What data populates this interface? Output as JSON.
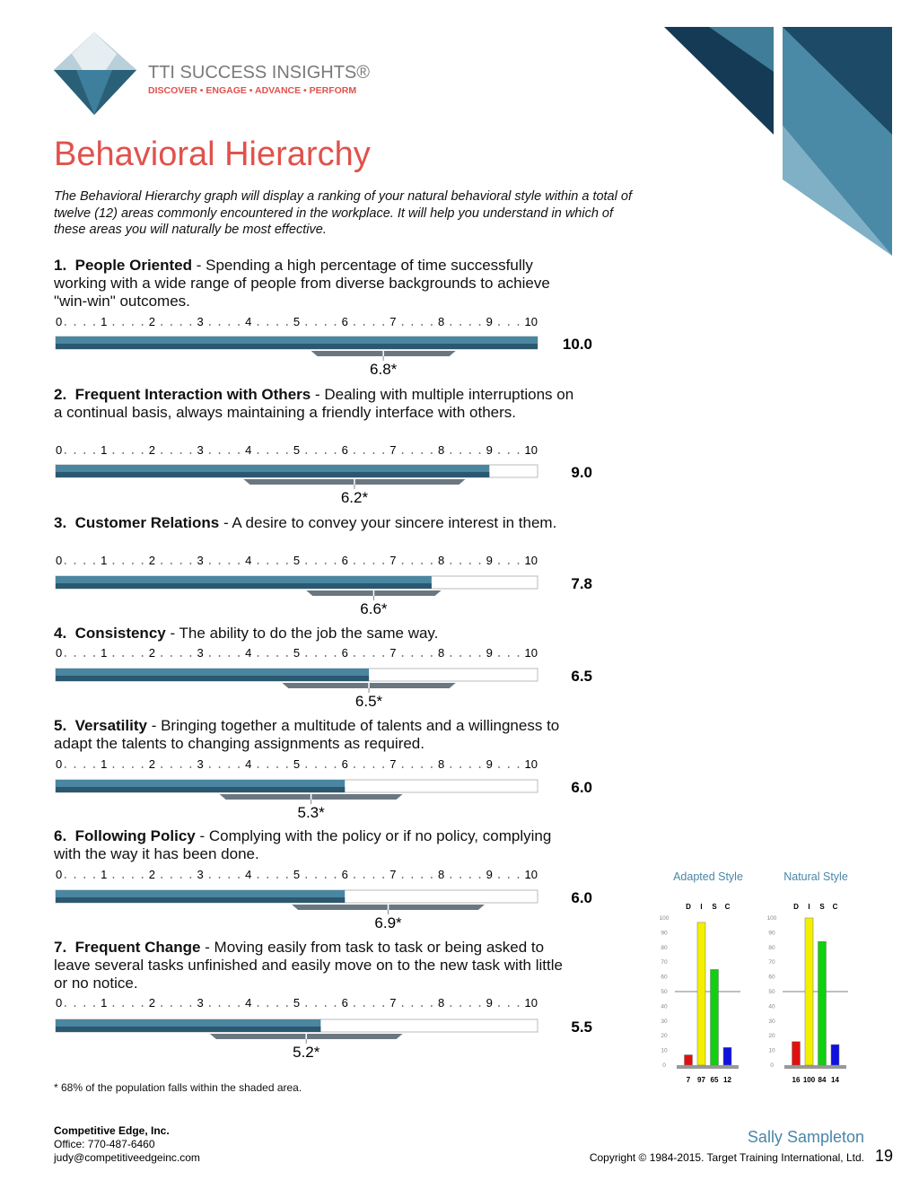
{
  "header": {
    "brand": "TTI SUCCESS INSIGHTS®",
    "tagline": "DISCOVER • ENGAGE • ADVANCE • PERFORM"
  },
  "title": "Behavioral Hierarchy",
  "intro": "The Behavioral Hierarchy graph will display a ranking of your natural behavioral style within a total of twelve (12) areas commonly encountered in the workplace.  It will help you understand in which of these areas you will naturally be most effective.",
  "scale_ticks": [
    0,
    1,
    2,
    3,
    4,
    5,
    6,
    7,
    8,
    9,
    10
  ],
  "items": [
    {
      "number": "1.",
      "name": "People Oriented",
      "description": "- Spending a high percentage of time successfully working with a wide range of people from diverse backgrounds to achieve \"win-win\" outcomes.",
      "score": 10,
      "score_label": "10.0",
      "mean": 6.8,
      "mean_label": "6.8*",
      "range": [
        5.3,
        8.3
      ]
    },
    {
      "number": "2.",
      "name": "Frequent Interaction with Others",
      "description": "- Dealing with multiple interruptions on a continual basis, always maintaining a friendly interface with others.",
      "score": 9,
      "score_label": "9.0",
      "mean": 6.2,
      "mean_label": "6.2*",
      "range": [
        3.9,
        8.5
      ]
    },
    {
      "number": "3.",
      "name": "Customer Relations",
      "description": "- A desire to convey your sincere interest in them.",
      "score": 7.8,
      "score_label": "7.8",
      "mean": 6.6,
      "mean_label": "6.6*",
      "range": [
        5.2,
        8.0
      ]
    },
    {
      "number": "4.",
      "name": "Consistency",
      "description": "- The ability to do the job the same way.",
      "score": 6.5,
      "score_label": "6.5",
      "mean": 6.5,
      "mean_label": "6.5*",
      "range": [
        4.7,
        8.3
      ]
    },
    {
      "number": "5.",
      "name": "Versatility",
      "description": "- Bringing together a multitude of talents and a willingness to adapt the talents to changing assignments as required.",
      "score": 6,
      "score_label": "6.0",
      "mean": 5.3,
      "mean_label": "5.3*",
      "range": [
        3.4,
        7.2
      ]
    },
    {
      "number": "6.",
      "name": "Following Policy",
      "description": "- Complying with the policy or if no policy, complying with the way it has been done.",
      "score": 6,
      "score_label": "6.0",
      "mean": 6.9,
      "mean_label": "6.9*",
      "range": [
        4.9,
        8.9
      ]
    },
    {
      "number": "7.",
      "name": "Frequent Change",
      "description": "- Moving easily from task to task or being asked to leave several tasks unfinished and easily move on to the new task with little or no notice.",
      "score": 5.5,
      "score_label": "5.5",
      "mean": 5.2,
      "mean_label": "5.2*",
      "range": [
        3.2,
        7.2
      ]
    }
  ],
  "footnote": "* 68% of the population falls within the shaded area.",
  "disc": {
    "categories": [
      "D",
      "I",
      "S",
      "C"
    ],
    "colors": [
      "#e01010",
      "#f2f000",
      "#10d010",
      "#1010e0"
    ],
    "ylim": [
      0,
      100
    ],
    "yticks": [
      0,
      10,
      20,
      30,
      40,
      50,
      60,
      70,
      80,
      90,
      100
    ],
    "charts": [
      {
        "title": "Adapted Style",
        "values": [
          7,
          97,
          65,
          12
        ]
      },
      {
        "title": "Natural Style",
        "values": [
          16,
          100,
          84,
          14
        ]
      }
    ]
  },
  "footer": {
    "company": "Competitive Edge, Inc.",
    "office": "Office:  770-487-6460",
    "email": "judy@competitiveedgeinc.com",
    "person": "Sally Sampleton",
    "copyright": "Copyright © 1984-2015. Target Training International, Ltd.",
    "page": "19"
  }
}
